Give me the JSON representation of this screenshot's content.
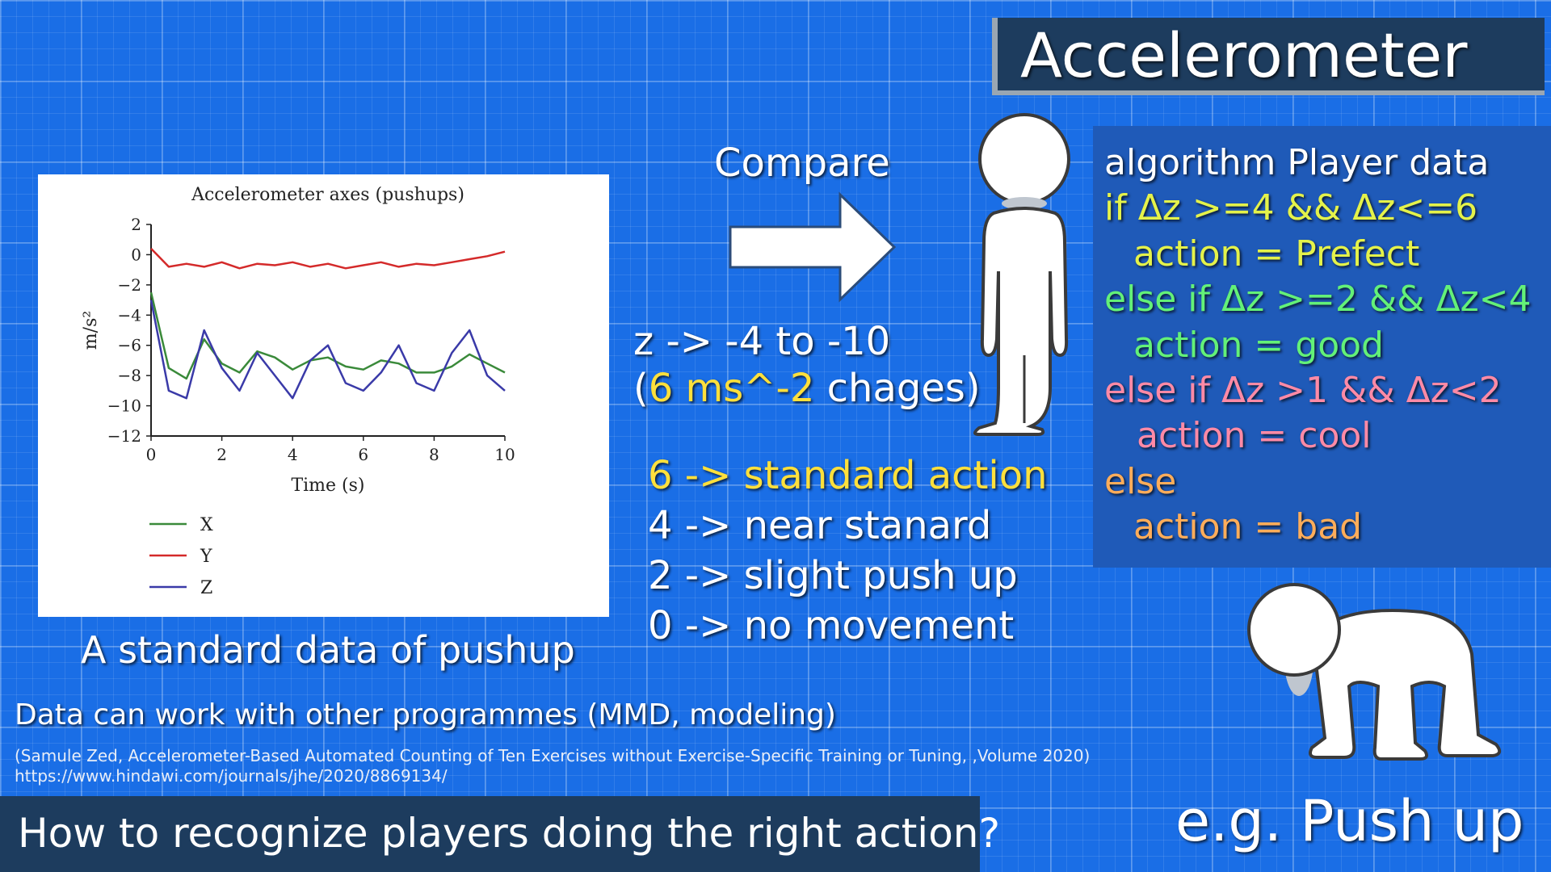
{
  "title": "Accelerometer",
  "chart_data": {
    "type": "line",
    "title": "Accelerometer axes (pushups)",
    "xlabel": "Time (s)",
    "ylabel": "m/s²",
    "xlim": [
      0,
      10
    ],
    "ylim": [
      -12,
      2
    ],
    "x_ticks": [
      0,
      2,
      4,
      6,
      8,
      10
    ],
    "y_ticks": [
      2,
      0,
      -2,
      -4,
      -6,
      -8,
      -10,
      -12
    ],
    "grid": false,
    "legend_position": "bottom-left",
    "x": [
      0,
      0.5,
      1,
      1.5,
      2,
      2.5,
      3,
      3.5,
      4,
      4.5,
      5,
      5.5,
      6,
      6.5,
      7,
      7.5,
      8,
      8.5,
      9,
      9.5,
      10
    ],
    "series": [
      {
        "name": "X",
        "color": "#3a8a3a",
        "values": [
          -2.5,
          -7.5,
          -8.2,
          -5.6,
          -7.2,
          -7.8,
          -6.4,
          -6.8,
          -7.6,
          -7.0,
          -6.8,
          -7.4,
          -7.6,
          -7.0,
          -7.2,
          -7.8,
          -7.8,
          -7.4,
          -6.6,
          -7.2,
          -7.8
        ]
      },
      {
        "name": "Y",
        "color": "#d42a2a",
        "values": [
          0.4,
          -0.8,
          -0.6,
          -0.8,
          -0.5,
          -0.9,
          -0.6,
          -0.7,
          -0.5,
          -0.8,
          -0.6,
          -0.9,
          -0.7,
          -0.5,
          -0.8,
          -0.6,
          -0.7,
          -0.5,
          -0.3,
          -0.1,
          0.2
        ]
      },
      {
        "name": "Z",
        "color": "#3a3aa8",
        "values": [
          -3.0,
          -9.0,
          -9.5,
          -5.0,
          -7.5,
          -9.0,
          -6.5,
          -8.0,
          -9.5,
          -7.0,
          -6.0,
          -8.5,
          -9.0,
          -7.8,
          -6.0,
          -8.5,
          -9.0,
          -6.5,
          -5.0,
          -8.0,
          -9.0
        ]
      }
    ]
  },
  "chart_caption": "A standard data of pushup",
  "compare_label": "Compare",
  "z_range": {
    "line1": "z -> -4 to -10",
    "paren_open": "(",
    "highlight": "6 ms^-2",
    "rest": " chages)"
  },
  "standard_list": [
    "6 -> standard action",
    "4 -> near stanard",
    "2 -> slight push up",
    "0 -> no movement"
  ],
  "algorithm": {
    "header": "algorithm Player data",
    "lines": [
      "if Δz >=4 && Δz<=6",
      "action = Prefect",
      "else if Δz >=2 && Δz<4",
      "action = good",
      "else if Δz >1 && Δz<2",
      "action = cool",
      "else",
      "action = bad"
    ]
  },
  "note": "Data can work with other programmes (MMD, modeling)",
  "citation": {
    "line1": "(Samule Zed, Accelerometer-Based Automated Counting of Ten Exercises without Exercise-Specific Training or Tuning, ,Volume 2020)",
    "line2": "https://www.hindawi.com/journals/jhe/2020/8869134/"
  },
  "bottom_question": "How to recognize players doing the right action?",
  "example_label": "e.g. Push up",
  "colors": {
    "background": "#1a6ee6",
    "title_box": "#1d3c5e",
    "algo_panel": "#1f5ab8",
    "yellow": "#ffe03c",
    "green": "#63f178",
    "pink": "#ff8aa6",
    "orange": "#ffad5a"
  },
  "icons": [
    "standing-figure-icon",
    "crawling-figure-icon",
    "right-arrow-icon"
  ]
}
